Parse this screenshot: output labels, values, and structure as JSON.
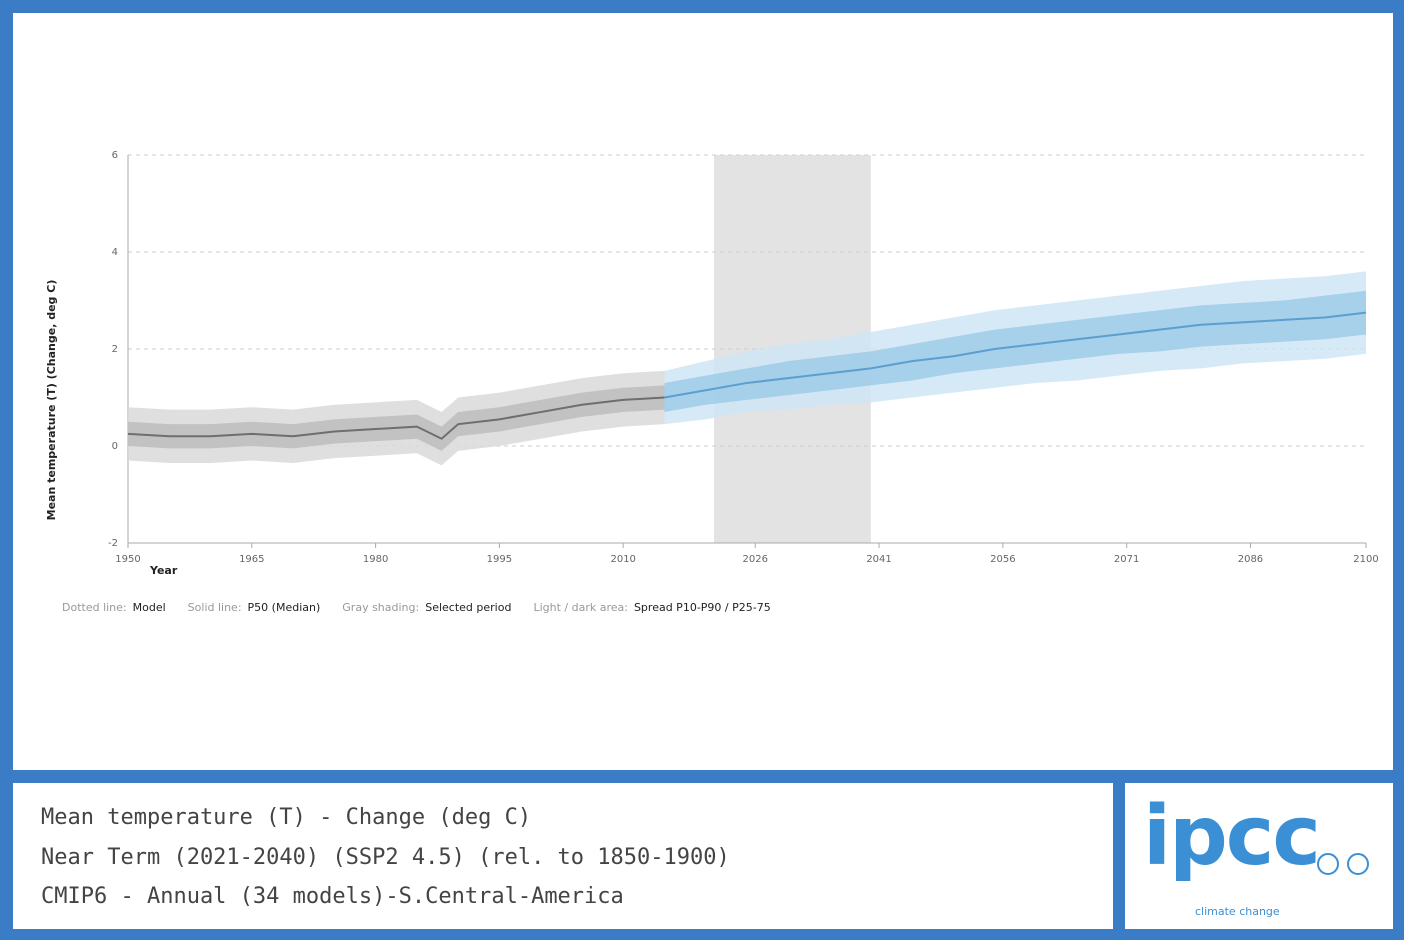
{
  "chart_data": {
    "type": "line",
    "y_label": "Mean temperature (T) (Change, deg C)",
    "x_label": "Year",
    "xlim": [
      1950,
      2100
    ],
    "xticks": [
      1950,
      1965,
      1980,
      1995,
      2010,
      2026,
      2041,
      2056,
      2071,
      2086,
      2100
    ],
    "ylim": [
      -2,
      6
    ],
    "yticks": [
      -2,
      0,
      2,
      4,
      6
    ],
    "grid": true,
    "selected_period": [
      2021,
      2040
    ],
    "historical": {
      "color": "#6e6e6e",
      "light": "#d9d9d9",
      "dark": "#bdbdbd",
      "x": [
        1950,
        1955,
        1960,
        1965,
        1970,
        1975,
        1980,
        1985,
        1988,
        1990,
        1995,
        2000,
        2005,
        2010,
        2015
      ],
      "p50": [
        0.25,
        0.2,
        0.2,
        0.25,
        0.2,
        0.3,
        0.35,
        0.4,
        0.15,
        0.45,
        0.55,
        0.7,
        0.85,
        0.95,
        1.0
      ],
      "p10": [
        -0.3,
        -0.35,
        -0.35,
        -0.3,
        -0.35,
        -0.25,
        -0.2,
        -0.15,
        -0.4,
        -0.1,
        0.0,
        0.15,
        0.3,
        0.4,
        0.45
      ],
      "p90": [
        0.8,
        0.75,
        0.75,
        0.8,
        0.75,
        0.85,
        0.9,
        0.95,
        0.7,
        1.0,
        1.1,
        1.25,
        1.4,
        1.5,
        1.55
      ],
      "p25": [
        0.0,
        -0.05,
        -0.05,
        0.0,
        -0.05,
        0.05,
        0.1,
        0.15,
        -0.1,
        0.2,
        0.3,
        0.45,
        0.6,
        0.7,
        0.75
      ],
      "p75": [
        0.5,
        0.45,
        0.45,
        0.5,
        0.45,
        0.55,
        0.6,
        0.65,
        0.4,
        0.7,
        0.8,
        0.95,
        1.1,
        1.2,
        1.25
      ]
    },
    "projection": {
      "color": "#5c9fcf",
      "light": "#cfe5f4",
      "dark": "#9fcbe8",
      "x": [
        2015,
        2020,
        2025,
        2030,
        2035,
        2040,
        2045,
        2050,
        2055,
        2060,
        2065,
        2070,
        2075,
        2080,
        2085,
        2090,
        2095,
        2100
      ],
      "p50": [
        1.0,
        1.15,
        1.3,
        1.4,
        1.5,
        1.6,
        1.75,
        1.85,
        2.0,
        2.1,
        2.2,
        2.3,
        2.4,
        2.5,
        2.55,
        2.6,
        2.65,
        2.75
      ],
      "p10": [
        0.45,
        0.55,
        0.7,
        0.75,
        0.85,
        0.9,
        1.0,
        1.1,
        1.2,
        1.3,
        1.35,
        1.45,
        1.55,
        1.6,
        1.7,
        1.75,
        1.8,
        1.9
      ],
      "p90": [
        1.55,
        1.75,
        1.95,
        2.1,
        2.2,
        2.35,
        2.5,
        2.65,
        2.8,
        2.9,
        3.0,
        3.1,
        3.2,
        3.3,
        3.4,
        3.45,
        3.5,
        3.6
      ],
      "p25": [
        0.7,
        0.85,
        0.95,
        1.05,
        1.15,
        1.25,
        1.35,
        1.5,
        1.6,
        1.7,
        1.8,
        1.9,
        1.95,
        2.05,
        2.1,
        2.15,
        2.2,
        2.3
      ],
      "p75": [
        1.3,
        1.45,
        1.6,
        1.75,
        1.85,
        1.95,
        2.1,
        2.25,
        2.4,
        2.5,
        2.6,
        2.7,
        2.8,
        2.9,
        2.95,
        3.0,
        3.1,
        3.2
      ]
    },
    "legend": [
      {
        "key": "Dotted line:",
        "text": "Model"
      },
      {
        "key": "Solid line:",
        "text": "P50 (Median)"
      },
      {
        "key": "Gray shading:",
        "text": "Selected period"
      },
      {
        "key": "Light / dark area:",
        "text": "Spread P10-P90 / P25-75"
      }
    ]
  },
  "info": {
    "lines": [
      "Mean temperature (T) - Change (deg C)",
      "Near Term (2021-2040) (SSP2 4.5) (rel. to 1850-1900)",
      "CMIP6 - Annual (34 models)-S.Central-America"
    ],
    "logo": "ipcc",
    "logo_sub": "climate change"
  }
}
